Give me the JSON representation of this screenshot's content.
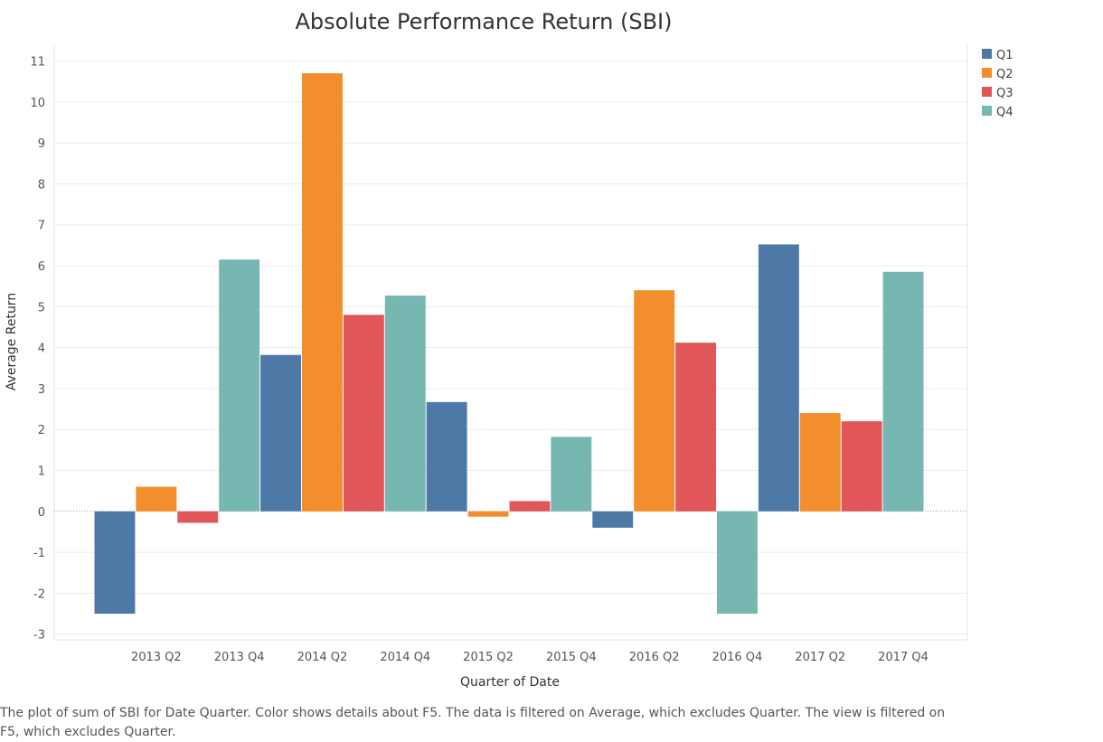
{
  "chart_data": {
    "type": "bar",
    "title": "Absolute Performance Return (SBI)",
    "xlabel": "Quarter of Date",
    "ylabel": "Average Return",
    "ylim": [
      -3,
      11
    ],
    "yticks": [
      11,
      10,
      9,
      8,
      7,
      6,
      5,
      4,
      3,
      2,
      1,
      0,
      -1,
      -2,
      -3
    ],
    "x_tick_labels": [
      "2013 Q2",
      "2013 Q4",
      "2014 Q2",
      "2014 Q4",
      "2015 Q2",
      "2015 Q4",
      "2016 Q2",
      "2016 Q4",
      "2017 Q2",
      "2017 Q4"
    ],
    "grid": true,
    "legend_position": "top-right",
    "legend": [
      {
        "label": "Q1",
        "color": "#4e79a7"
      },
      {
        "label": "Q2",
        "color": "#f28e2b"
      },
      {
        "label": "Q3",
        "color": "#e15759"
      },
      {
        "label": "Q4",
        "color": "#76b7b2"
      }
    ],
    "bars": [
      {
        "period": "2013 Q1",
        "group": "Q1",
        "value": -2.5
      },
      {
        "period": "2013 Q2",
        "group": "Q2",
        "value": 0.6
      },
      {
        "period": "2013 Q3",
        "group": "Q3",
        "value": -0.28
      },
      {
        "period": "2013 Q4",
        "group": "Q4",
        "value": 6.15
      },
      {
        "period": "2014 Q1",
        "group": "Q1",
        "value": 3.82
      },
      {
        "period": "2014 Q2",
        "group": "Q2",
        "value": 10.7
      },
      {
        "period": "2014 Q3",
        "group": "Q3",
        "value": 4.8
      },
      {
        "period": "2014 Q4",
        "group": "Q4",
        "value": 5.27
      },
      {
        "period": "2015 Q1",
        "group": "Q1",
        "value": 2.67
      },
      {
        "period": "2015 Q2",
        "group": "Q2",
        "value": -0.13
      },
      {
        "period": "2015 Q3",
        "group": "Q3",
        "value": 0.25
      },
      {
        "period": "2015 Q4",
        "group": "Q4",
        "value": 1.82
      },
      {
        "period": "2016 Q1",
        "group": "Q1",
        "value": -0.4
      },
      {
        "period": "2016 Q2",
        "group": "Q2",
        "value": 5.4
      },
      {
        "period": "2016 Q3",
        "group": "Q3",
        "value": 4.12
      },
      {
        "period": "2016 Q4",
        "group": "Q4",
        "value": -2.5
      },
      {
        "period": "2017 Q1",
        "group": "Q1",
        "value": 6.52
      },
      {
        "period": "2017 Q2",
        "group": "Q2",
        "value": 2.4
      },
      {
        "period": "2017 Q3",
        "group": "Q3",
        "value": 2.2
      },
      {
        "period": "2017 Q4",
        "group": "Q4",
        "value": 5.85
      }
    ]
  },
  "caption": "The plot of sum of SBI for Date Quarter.  Color shows details about F5. The data is filtered on Average, which excludes Quarter. The view is filtered on F5, which excludes Quarter."
}
